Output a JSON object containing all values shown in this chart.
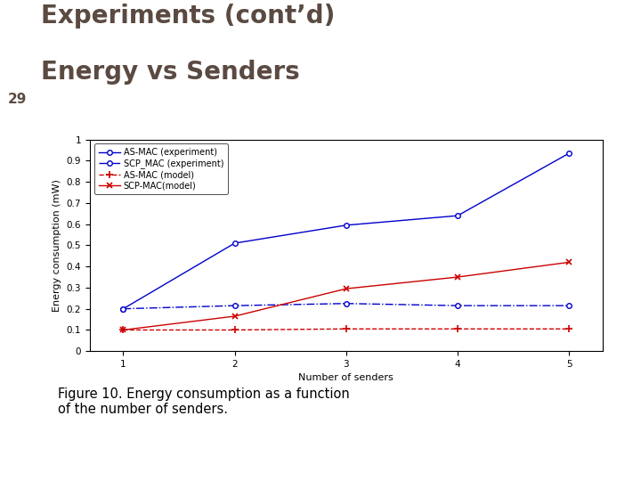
{
  "title_line1": "Experiments (cont’d)",
  "title_line2": "Energy vs Senders",
  "title_color": "#5a4a42",
  "slide_number": "29",
  "header_bar_color": "#a8c4d5",
  "background_color": "#ffffff",
  "x": [
    1,
    2,
    3,
    4,
    5
  ],
  "as_mac_exp": [
    0.2,
    0.51,
    0.595,
    0.64,
    0.935
  ],
  "scp_mac_exp": [
    0.2,
    0.215,
    0.225,
    0.215,
    0.215
  ],
  "as_mac_model": [
    0.1,
    0.1,
    0.105,
    0.105,
    0.105
  ],
  "scp_mac_model": [
    0.1,
    0.165,
    0.295,
    0.35,
    0.42
  ],
  "as_mac_exp_color": "#0000cc",
  "scp_mac_exp_color": "#0000cc",
  "as_mac_model_color": "#cc0000",
  "scp_mac_model_color": "#cc0000",
  "xlabel": "Number of senders",
  "ylabel": "Energy consumption (mW)",
  "xlim": [
    0.7,
    5.3
  ],
  "ylim": [
    0,
    1.0
  ],
  "yticks": [
    0,
    0.1,
    0.2,
    0.3,
    0.4,
    0.5,
    0.6,
    0.7,
    0.8,
    0.9,
    1
  ],
  "ytick_labels": [
    "0",
    "0.1",
    "0.2",
    "0.3",
    "0.4",
    "0.5",
    "0.6",
    "0.7",
    "0.8",
    "0.9",
    "1"
  ],
  "xticks": [
    1,
    2,
    3,
    4,
    5
  ],
  "legend_labels": [
    "AS-MAC (experiment)",
    "SCP_MAC (experiment)",
    "AS-MAC (model)",
    "SCP-MAC(model)"
  ],
  "caption": "Figure 10. Energy consumption as a function\nof the number of senders.",
  "caption_color": "#000000",
  "caption_fontsize": 10.5
}
